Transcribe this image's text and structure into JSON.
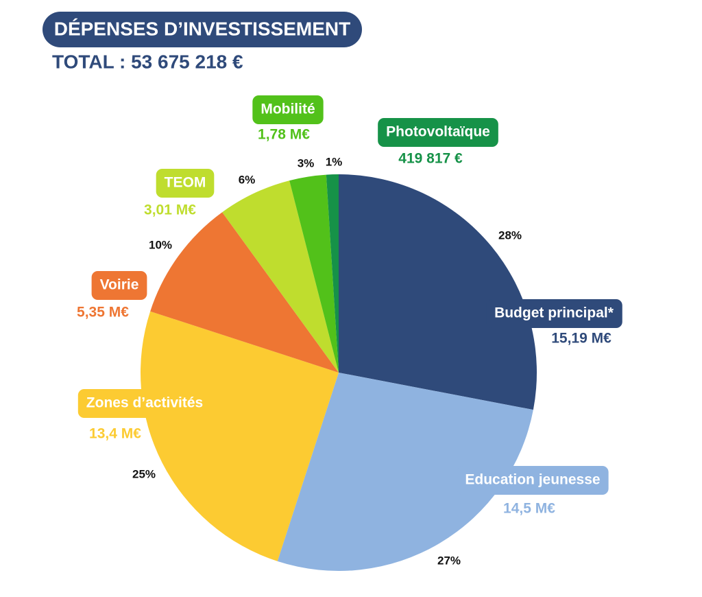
{
  "chart_data": {
    "type": "pie",
    "title": "DÉPENSES D’INVESTISSEMENT",
    "subtitle": "TOTAL : 53 675 218 €",
    "categories": [
      "Budget principal*",
      "Education jeunesse",
      "Zones d’activités",
      "Voirie",
      "TEOM",
      "Mobilité",
      "Photovoltaïque"
    ],
    "values": [
      28,
      27,
      25,
      10,
      6,
      3,
      1
    ],
    "value_labels": [
      "28%",
      "27%",
      "25%",
      "10%",
      "6%",
      "3%",
      "1%"
    ],
    "amount_labels": [
      "15,19 M€",
      "14,5 M€",
      "13,4 M€",
      "5,35 M€",
      "3,01 M€",
      "1,78 M€",
      "419 817 €"
    ],
    "colors": [
      "#2f4a7a",
      "#8fb3e0",
      "#fccb32",
      "#ee7633",
      "#bfdd2e",
      "#52c11a",
      "#169248"
    ]
  }
}
